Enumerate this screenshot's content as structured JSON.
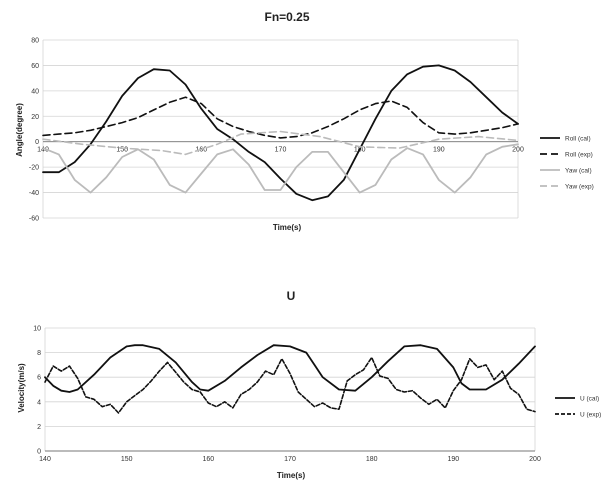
{
  "chart_data": [
    {
      "type": "line",
      "title": "Fn=0.25",
      "xlabel": "Time(s)",
      "ylabel": "Angle(degree)",
      "xlim": [
        140,
        200
      ],
      "ylim": [
        -60,
        80
      ],
      "xticks": [
        140,
        150,
        160,
        170,
        180,
        190,
        200
      ],
      "yticks": [
        -60,
        -40,
        -20,
        0,
        20,
        40,
        60,
        80
      ],
      "grid": "horizontal",
      "legend": "right",
      "series": [
        {
          "name": "Roll (cal)",
          "style": "solid",
          "color": "#111111",
          "x": [
            140,
            142,
            144,
            146,
            148,
            150,
            152,
            154,
            156,
            158,
            160,
            162,
            164,
            166,
            168,
            170,
            172,
            174,
            176,
            178,
            180,
            182,
            184,
            186,
            188,
            190,
            192,
            194,
            196,
            198,
            200
          ],
          "y": [
            -24,
            -24,
            -16,
            -2,
            16,
            36,
            50,
            57,
            56,
            45,
            26,
            10,
            2,
            -8,
            -16,
            -29,
            -41,
            -46,
            -43,
            -30,
            -6,
            18,
            40,
            53,
            59,
            60,
            56,
            47,
            35,
            23,
            14
          ]
        },
        {
          "name": "Roll (exp)",
          "style": "dashed",
          "color": "#111111",
          "x": [
            140,
            142,
            144,
            146,
            148,
            150,
            152,
            154,
            156,
            158,
            160,
            162,
            164,
            166,
            168,
            170,
            172,
            174,
            176,
            178,
            180,
            182,
            184,
            186,
            188,
            190,
            192,
            194,
            196,
            198,
            200
          ],
          "y": [
            5,
            6,
            7,
            9,
            12,
            15,
            19,
            25,
            31,
            35,
            30,
            18,
            12,
            8,
            5,
            3,
            4,
            7,
            12,
            18,
            25,
            30,
            32,
            27,
            15,
            7,
            6,
            7,
            9,
            11,
            14
          ]
        },
        {
          "name": "Yaw (cal)",
          "style": "solid",
          "color": "#bbbbbb",
          "x": [
            140,
            142,
            144,
            146,
            148,
            150,
            152,
            154,
            156,
            158,
            160,
            162,
            164,
            166,
            168,
            170,
            172,
            174,
            176,
            178,
            180,
            182,
            184,
            186,
            188,
            190,
            192,
            194,
            196,
            198,
            200
          ],
          "y": [
            -5,
            -10,
            -30,
            -40,
            -28,
            -12,
            -6,
            -14,
            -34,
            -40,
            -25,
            -10,
            -6,
            -18,
            -38,
            -38,
            -20,
            -8,
            -8,
            -24,
            -40,
            -34,
            -14,
            -5,
            -10,
            -30,
            -40,
            -28,
            -10,
            -4,
            -2
          ]
        },
        {
          "name": "Yaw (exp)",
          "style": "dashed",
          "color": "#bbbbbb",
          "x": [
            140,
            145,
            150,
            155,
            158,
            162,
            165,
            170,
            175,
            180,
            185,
            190,
            195,
            200
          ],
          "y": [
            2,
            -2,
            -5,
            -7,
            -10,
            -2,
            6,
            8,
            4,
            -4,
            -5,
            2,
            4,
            1
          ]
        }
      ]
    },
    {
      "type": "line",
      "title": "U",
      "xlabel": "Time(s)",
      "ylabel": "Velocity(m/s)",
      "xlim": [
        140,
        200
      ],
      "ylim": [
        0,
        10
      ],
      "xticks": [
        140,
        150,
        160,
        170,
        180,
        190,
        200
      ],
      "yticks": [
        0,
        2,
        4,
        6,
        8,
        10
      ],
      "grid": "horizontal",
      "legend": "right",
      "series": [
        {
          "name": "U (cal)",
          "style": "solid",
          "color": "#111111",
          "x": [
            140,
            141,
            142,
            143,
            144,
            146,
            148,
            150,
            151,
            152,
            154,
            156,
            158,
            159,
            160,
            162,
            164,
            166,
            168,
            170,
            172,
            173,
            174,
            176,
            178,
            180,
            182,
            184,
            186,
            188,
            190,
            191,
            192,
            194,
            196,
            198,
            200
          ],
          "y": [
            6.0,
            5.3,
            4.9,
            4.8,
            5.0,
            6.2,
            7.6,
            8.5,
            8.6,
            8.6,
            8.3,
            7.2,
            5.6,
            5.0,
            4.9,
            5.7,
            6.8,
            7.8,
            8.6,
            8.5,
            8.0,
            7.0,
            6.0,
            5.0,
            4.9,
            6.0,
            7.3,
            8.5,
            8.6,
            8.3,
            6.8,
            5.5,
            5.0,
            5.0,
            5.8,
            7.1,
            8.5
          ]
        },
        {
          "name": "U (exp)",
          "style": "dotted-dash",
          "color": "#111111",
          "x": [
            140,
            141,
            142,
            143,
            144,
            145,
            146,
            147,
            148,
            149,
            150,
            151,
            152,
            153,
            154,
            155,
            156,
            157,
            158,
            159,
            160,
            161,
            162,
            163,
            164,
            165,
            166,
            167,
            168,
            169,
            170,
            171,
            172,
            173,
            174,
            175,
            176,
            177,
            178,
            179,
            180,
            181,
            182,
            183,
            184,
            185,
            186,
            187,
            188,
            189,
            190,
            191,
            192,
            193,
            194,
            195,
            196,
            197,
            198,
            199,
            200
          ],
          "y": [
            5.6,
            6.9,
            6.5,
            6.9,
            5.9,
            4.4,
            4.2,
            3.6,
            3.8,
            3.1,
            4.0,
            4.5,
            5.0,
            5.7,
            6.5,
            7.2,
            6.4,
            5.6,
            5.0,
            4.8,
            3.9,
            3.6,
            4.0,
            3.5,
            4.6,
            5.0,
            5.6,
            6.5,
            6.2,
            7.5,
            6.3,
            4.8,
            4.2,
            3.6,
            3.9,
            3.5,
            3.4,
            5.7,
            6.2,
            6.6,
            7.6,
            6.1,
            5.9,
            5.0,
            4.8,
            4.9,
            4.3,
            3.8,
            4.2,
            3.5,
            4.9,
            5.8,
            7.5,
            6.8,
            7.0,
            5.8,
            6.5,
            5.1,
            4.6,
            3.4,
            3.2
          ]
        }
      ]
    }
  ]
}
